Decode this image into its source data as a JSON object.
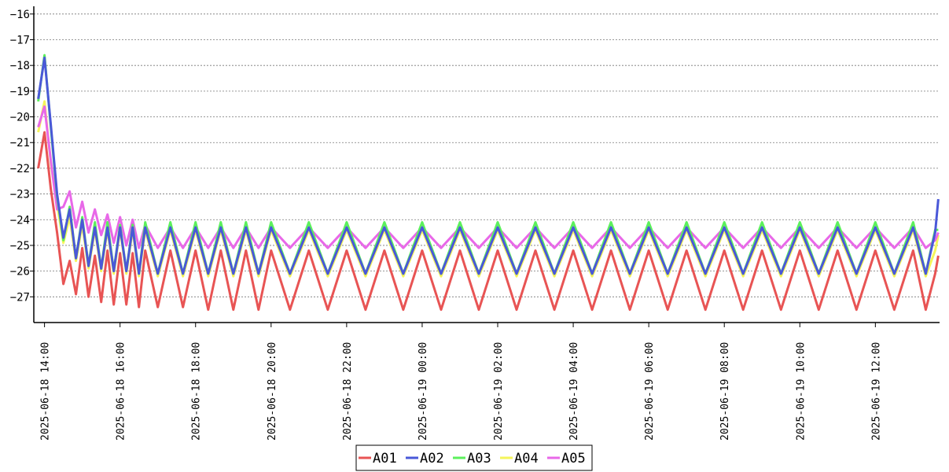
{
  "chart_data": {
    "type": "line",
    "title": "",
    "xlabel": "",
    "ylabel": "",
    "ylim": [
      -28,
      -15.7
    ],
    "yticks": [
      -16,
      -17,
      -18,
      -19,
      -20,
      -21,
      -22,
      -23,
      -24,
      -25,
      -26,
      -27
    ],
    "xlim": [
      "2025-06-18 13:43",
      "2025-06-19 13:42"
    ],
    "xticks": [
      "2025-06-18 14:00",
      "2025-06-18 16:00",
      "2025-06-18 18:00",
      "2025-06-18 20:00",
      "2025-06-18 22:00",
      "2025-06-19 00:00",
      "2025-06-19 02:00",
      "2025-06-19 04:00",
      "2025-06-19 06:00",
      "2025-06-19 08:00",
      "2025-06-19 10:00",
      "2025-06-19 12:00"
    ],
    "grid": {
      "horizontal": true,
      "vertical": false,
      "style": "dotted"
    },
    "legend": {
      "placement": "bottom-center"
    },
    "x": [
      "2025-06-18 13:50",
      "2025-06-18 14:00",
      "2025-06-18 14:10",
      "2025-06-18 14:20",
      "2025-06-18 14:30",
      "2025-06-18 14:40",
      "2025-06-18 14:50",
      "2025-06-18 15:00",
      "2025-06-18 15:10",
      "2025-06-18 15:20",
      "2025-06-18 15:30",
      "2025-06-18 15:40",
      "2025-06-18 15:50",
      "2025-06-18 16:00",
      "2025-06-18 16:10",
      "2025-06-18 16:20",
      "2025-06-18 16:30",
      "2025-06-18 16:40",
      "2025-06-18 17:00",
      "2025-06-18 17:20",
      "2025-06-18 17:40",
      "2025-06-18 18:00",
      "2025-06-18 18:20",
      "2025-06-18 18:40",
      "2025-06-18 19:00",
      "2025-06-18 19:20",
      "2025-06-18 19:40",
      "2025-06-18 20:00",
      "2025-06-18 20:30",
      "2025-06-18 21:00",
      "2025-06-18 21:30",
      "2025-06-18 22:00",
      "2025-06-18 22:30",
      "2025-06-18 23:00",
      "2025-06-18 23:30",
      "2025-06-19 00:00",
      "2025-06-19 00:30",
      "2025-06-19 01:00",
      "2025-06-19 01:30",
      "2025-06-19 02:00",
      "2025-06-19 02:30",
      "2025-06-19 03:00",
      "2025-06-19 03:30",
      "2025-06-19 04:00",
      "2025-06-19 04:30",
      "2025-06-19 05:00",
      "2025-06-19 05:30",
      "2025-06-19 06:00",
      "2025-06-19 06:30",
      "2025-06-19 07:00",
      "2025-06-19 07:30",
      "2025-06-19 08:00",
      "2025-06-19 08:30",
      "2025-06-19 09:00",
      "2025-06-19 09:30",
      "2025-06-19 10:00",
      "2025-06-19 10:30",
      "2025-06-19 11:00",
      "2025-06-19 11:30",
      "2025-06-19 12:00",
      "2025-06-19 12:30",
      "2025-06-19 13:00",
      "2025-06-19 13:20",
      "2025-06-19 13:35",
      "2025-06-19 13:40"
    ],
    "series": [
      {
        "name": "A01",
        "color": "#e85454",
        "values": [
          -22.0,
          -20.6,
          -22.8,
          -24.5,
          -26.5,
          -25.6,
          -26.9,
          -25.1,
          -27.0,
          -25.4,
          -27.2,
          -25.2,
          -27.3,
          -25.3,
          -27.3,
          -25.3,
          -27.4,
          -25.2,
          -27.4,
          -25.2,
          -27.4,
          -25.2,
          -27.5,
          -25.2,
          -27.5,
          -25.2,
          -27.5,
          -25.2,
          -27.5,
          -25.2,
          -27.5,
          -25.2,
          -27.5,
          -25.2,
          -27.5,
          -25.2,
          -27.5,
          -25.2,
          -27.5,
          -25.2,
          -27.5,
          -25.2,
          -27.5,
          -25.2,
          -27.5,
          -25.2,
          -27.5,
          -25.2,
          -27.5,
          -25.2,
          -27.5,
          -25.2,
          -27.5,
          -25.2,
          -27.5,
          -25.2,
          -27.5,
          -25.2,
          -27.5,
          -25.2,
          -27.5,
          -25.2,
          -27.5,
          -26.1,
          -25.4
        ]
      },
      {
        "name": "A02",
        "color": "#4a58d8",
        "values": [
          -19.3,
          -17.7,
          -20.3,
          -23.0,
          -24.7,
          -23.6,
          -25.5,
          -24.0,
          -25.8,
          -24.3,
          -25.9,
          -24.3,
          -26.0,
          -24.3,
          -26.0,
          -24.3,
          -26.1,
          -24.3,
          -26.1,
          -24.3,
          -26.1,
          -24.3,
          -26.1,
          -24.3,
          -26.1,
          -24.3,
          -26.1,
          -24.3,
          -26.1,
          -24.3,
          -26.1,
          -24.3,
          -26.1,
          -24.3,
          -26.1,
          -24.3,
          -26.1,
          -24.3,
          -26.1,
          -24.3,
          -26.1,
          -24.3,
          -26.1,
          -24.3,
          -26.1,
          -24.3,
          -26.1,
          -24.3,
          -26.1,
          -24.3,
          -26.1,
          -24.3,
          -26.1,
          -24.3,
          -26.1,
          -24.3,
          -26.1,
          -24.3,
          -26.1,
          -24.3,
          -26.1,
          -24.3,
          -26.1,
          -24.5,
          -23.2
        ]
      },
      {
        "name": "A03",
        "color": "#5cf05c",
        "values": [
          -19.4,
          -17.6,
          -20.4,
          -23.1,
          -24.8,
          -23.5,
          -25.5,
          -23.9,
          -25.8,
          -24.1,
          -25.9,
          -24.1,
          -26.0,
          -24.2,
          -26.0,
          -24.2,
          -26.1,
          -24.1,
          -26.1,
          -24.1,
          -26.1,
          -24.1,
          -26.1,
          -24.1,
          -26.1,
          -24.1,
          -26.1,
          -24.1,
          -26.1,
          -24.1,
          -26.1,
          -24.1,
          -26.1,
          -24.1,
          -26.1,
          -24.1,
          -26.1,
          -24.1,
          -26.1,
          -24.1,
          -26.1,
          -24.1,
          -26.1,
          -24.1,
          -26.1,
          -24.1,
          -26.1,
          -24.1,
          -26.1,
          -24.1,
          -26.1,
          -24.1,
          -26.1,
          -24.1,
          -26.1,
          -24.1,
          -26.1,
          -24.1,
          -26.1,
          -24.1,
          -26.1,
          -24.1,
          -26.1,
          -24.4,
          -24.4
        ]
      },
      {
        "name": "A04",
        "color": "#f5f55a",
        "values": [
          -20.6,
          -19.4,
          -21.8,
          -23.4,
          -24.9,
          -23.9,
          -25.6,
          -24.2,
          -25.9,
          -24.4,
          -26.0,
          -24.4,
          -26.1,
          -24.4,
          -26.1,
          -24.4,
          -26.2,
          -24.4,
          -26.2,
          -24.4,
          -26.2,
          -24.4,
          -26.2,
          -24.4,
          -26.2,
          -24.4,
          -26.2,
          -24.4,
          -26.2,
          -24.4,
          -26.2,
          -24.4,
          -26.2,
          -24.4,
          -26.2,
          -24.4,
          -26.2,
          -24.4,
          -26.2,
          -24.4,
          -26.2,
          -24.4,
          -26.2,
          -24.4,
          -26.2,
          -24.4,
          -26.2,
          -24.4,
          -26.2,
          -24.4,
          -26.2,
          -24.4,
          -26.2,
          -24.4,
          -26.2,
          -24.4,
          -26.2,
          -24.4,
          -26.2,
          -24.4,
          -26.2,
          -24.4,
          -26.2,
          -25.2,
          -24.6
        ]
      },
      {
        "name": "A05",
        "color": "#e868e8",
        "values": [
          -20.4,
          -19.6,
          -21.7,
          -23.6,
          -23.5,
          -22.9,
          -24.3,
          -23.3,
          -24.5,
          -23.6,
          -24.6,
          -23.8,
          -24.9,
          -23.9,
          -25.0,
          -24.0,
          -25.1,
          -24.2,
          -25.1,
          -24.3,
          -25.1,
          -24.3,
          -25.1,
          -24.3,
          -25.1,
          -24.3,
          -25.1,
          -24.3,
          -25.1,
          -24.3,
          -25.1,
          -24.3,
          -25.1,
          -24.3,
          -25.1,
          -24.3,
          -25.1,
          -24.3,
          -25.1,
          -24.3,
          -25.1,
          -24.3,
          -25.1,
          -24.3,
          -25.1,
          -24.3,
          -25.1,
          -24.3,
          -25.1,
          -24.3,
          -25.1,
          -24.3,
          -25.1,
          -24.3,
          -25.1,
          -24.3,
          -25.1,
          -24.3,
          -25.1,
          -24.3,
          -25.1,
          -24.3,
          -25.1,
          -24.8,
          -24.5
        ]
      }
    ]
  }
}
